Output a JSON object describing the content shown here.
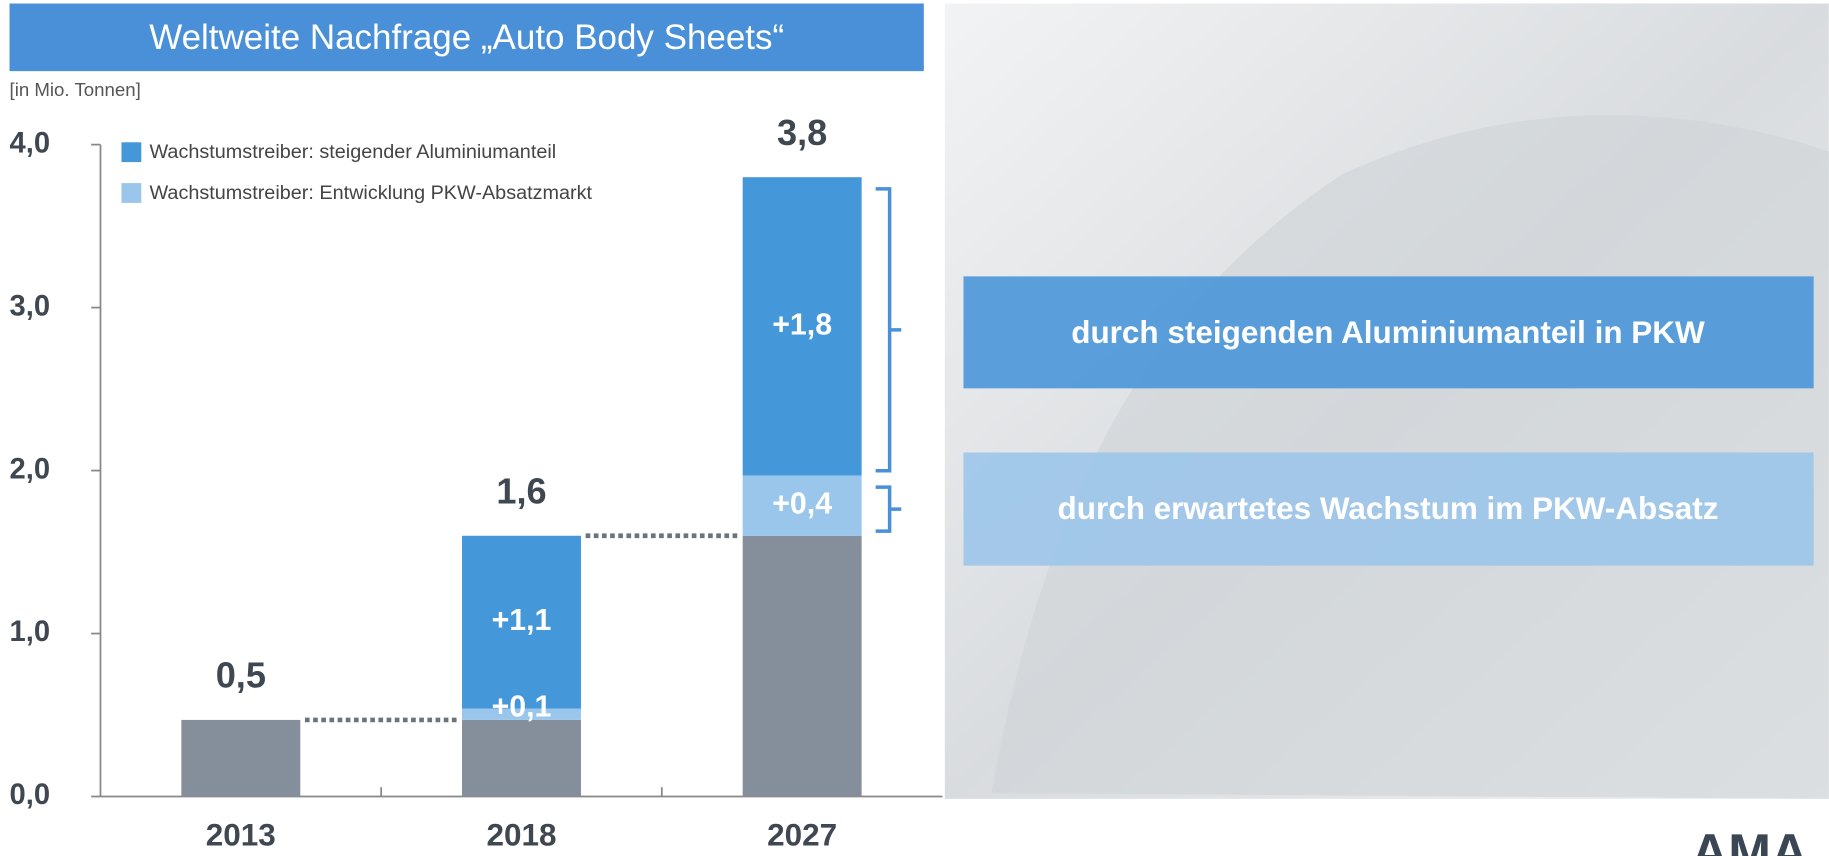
{
  "chart_data": {
    "type": "stacked_bar",
    "title": "Weltweite Nachfrage „Auto Body Sheets“",
    "unit_label": "[in Mio. Tonnen]",
    "categories": [
      "2013",
      "2018",
      "2027"
    ],
    "series": [
      {
        "color": "#858f9b",
        "values": [
          0.47,
          0.47,
          1.6
        ]
      },
      {
        "name": "Wachstumstreiber: Entwicklung PKW-Absatzmarkt",
        "color": "#9ac6ec",
        "values": [
          null,
          0.07,
          0.37
        ],
        "value_labels": [
          null,
          "+0,1",
          "+0,4"
        ]
      },
      {
        "name": "Wachstumstreiber: steigender Aluminiumanteil",
        "color": "#4497d9",
        "values": [
          null,
          1.06,
          1.83
        ],
        "value_labels": [
          null,
          "+1,1",
          "+1,8"
        ]
      }
    ],
    "totals": [
      0.47,
      1.6,
      3.8
    ],
    "total_labels": [
      "0,5",
      "1,6",
      "3,8"
    ],
    "ylim": [
      0,
      4
    ],
    "yticks": [
      {
        "value": 0,
        "label": "0,0"
      },
      {
        "value": 1,
        "label": "1,0"
      },
      {
        "value": 2,
        "label": "2,0"
      },
      {
        "value": 3,
        "label": "3,0"
      },
      {
        "value": 4,
        "label": "4,0"
      }
    ],
    "annotations": [
      "durch steigenden Aluminiumanteil in PKW",
      "durch erwartetes Wachstum im PKW-Absatz"
    ],
    "logo": "AMA"
  }
}
